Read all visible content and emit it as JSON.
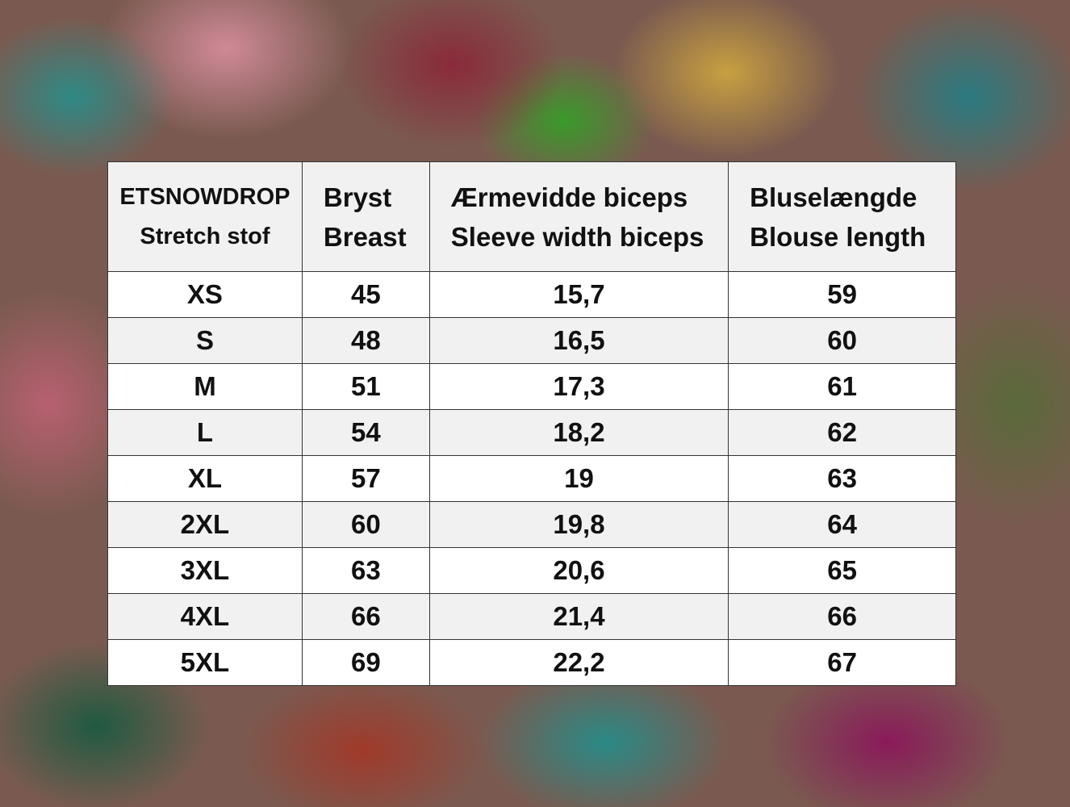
{
  "table": {
    "header": [
      [
        "ETSNOWDROP",
        "Stretch stof"
      ],
      [
        "Bryst",
        "Breast"
      ],
      [
        "Ærmevidde biceps",
        "Sleeve width biceps"
      ],
      [
        "Bluselængde",
        "Blouse length"
      ]
    ],
    "rows": [
      [
        "XS",
        "45",
        "15,7",
        "59"
      ],
      [
        "S",
        "48",
        "16,5",
        "60"
      ],
      [
        "M",
        "51",
        "17,3",
        "61"
      ],
      [
        "L",
        "54",
        "18,2",
        "62"
      ],
      [
        "XL",
        "57",
        "19",
        "63"
      ],
      [
        "2XL",
        "60",
        "19,8",
        "64"
      ],
      [
        "3XL",
        "63",
        "20,6",
        "65"
      ],
      [
        "4XL",
        "66",
        "21,4",
        "66"
      ],
      [
        "5XL",
        "69",
        "22,2",
        "67"
      ]
    ]
  }
}
